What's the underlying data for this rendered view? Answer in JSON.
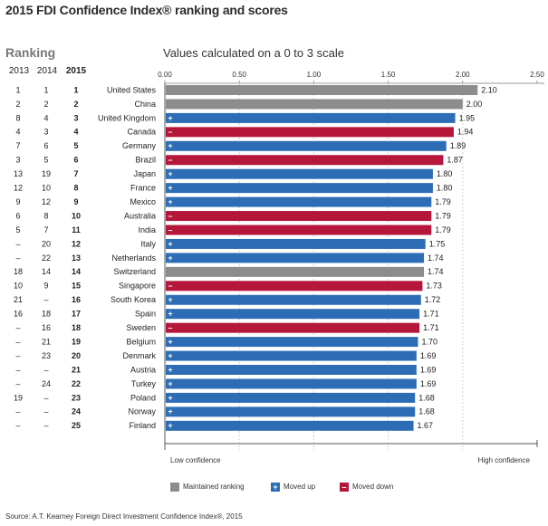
{
  "title": "2015 FDI Confidence Index® ranking and scores",
  "ranking_label": "Ranking",
  "scale_label": "Values calculated on a 0 to 3 scale",
  "years": [
    "2013",
    "2014",
    "2015"
  ],
  "legend": {
    "maintained": "Maintained ranking",
    "up": "Moved up",
    "down": "Moved down"
  },
  "source": "Source: A.T. Kearney Foreign Direct Investment Confidence Index®, 2015",
  "colors": {
    "maintained": "#8c8c8c",
    "up": "#2d6db5",
    "down": "#b5173b"
  },
  "chart_data": {
    "type": "bar",
    "orientation": "horizontal",
    "xlim": [
      0,
      2.5
    ],
    "x_ticks": [
      "0.00",
      "0.50",
      "1.00",
      "1.50",
      "2.00",
      "2.50"
    ],
    "x_tick_values": [
      0,
      0.5,
      1.0,
      1.5,
      2.0,
      2.5
    ],
    "low_label": "Low confidence",
    "high_label": "High confidence",
    "rows": [
      {
        "r2013": "1",
        "r2014": "1",
        "r2015": "1",
        "country": "United States",
        "value": 2.1,
        "label": "2.10",
        "status": "maintained"
      },
      {
        "r2013": "2",
        "r2014": "2",
        "r2015": "2",
        "country": "China",
        "value": 2.0,
        "label": "2.00",
        "status": "maintained"
      },
      {
        "r2013": "8",
        "r2014": "4",
        "r2015": "3",
        "country": "United Kingdom",
        "value": 1.95,
        "label": "1.95",
        "status": "up"
      },
      {
        "r2013": "4",
        "r2014": "3",
        "r2015": "4",
        "country": "Canada",
        "value": 1.94,
        "label": "1.94",
        "status": "down"
      },
      {
        "r2013": "7",
        "r2014": "6",
        "r2015": "5",
        "country": "Germany",
        "value": 1.89,
        "label": "1.89",
        "status": "up"
      },
      {
        "r2013": "3",
        "r2014": "5",
        "r2015": "6",
        "country": "Brazil",
        "value": 1.87,
        "label": "1.87",
        "status": "down"
      },
      {
        "r2013": "13",
        "r2014": "19",
        "r2015": "7",
        "country": "Japan",
        "value": 1.8,
        "label": "1.80",
        "status": "up"
      },
      {
        "r2013": "12",
        "r2014": "10",
        "r2015": "8",
        "country": "France",
        "value": 1.8,
        "label": "1.80",
        "status": "up"
      },
      {
        "r2013": "9",
        "r2014": "12",
        "r2015": "9",
        "country": "Mexico",
        "value": 1.79,
        "label": "1.79",
        "status": "up"
      },
      {
        "r2013": "6",
        "r2014": "8",
        "r2015": "10",
        "country": "Australia",
        "value": 1.79,
        "label": "1.79",
        "status": "down"
      },
      {
        "r2013": "5",
        "r2014": "7",
        "r2015": "11",
        "country": "India",
        "value": 1.79,
        "label": "1.79",
        "status": "down"
      },
      {
        "r2013": "–",
        "r2014": "20",
        "r2015": "12",
        "country": "Italy",
        "value": 1.75,
        "label": "1.75",
        "status": "up"
      },
      {
        "r2013": "–",
        "r2014": "22",
        "r2015": "13",
        "country": "Netherlands",
        "value": 1.74,
        "label": "1.74",
        "status": "up"
      },
      {
        "r2013": "18",
        "r2014": "14",
        "r2015": "14",
        "country": "Switzerland",
        "value": 1.74,
        "label": "1.74",
        "status": "maintained"
      },
      {
        "r2013": "10",
        "r2014": "9",
        "r2015": "15",
        "country": "Singapore",
        "value": 1.73,
        "label": "1.73",
        "status": "down"
      },
      {
        "r2013": "21",
        "r2014": "–",
        "r2015": "16",
        "country": "South Korea",
        "value": 1.72,
        "label": "1.72",
        "status": "up"
      },
      {
        "r2013": "16",
        "r2014": "18",
        "r2015": "17",
        "country": "Spain",
        "value": 1.71,
        "label": "1.71",
        "status": "up"
      },
      {
        "r2013": "–",
        "r2014": "16",
        "r2015": "18",
        "country": "Sweden",
        "value": 1.71,
        "label": "1.71",
        "status": "down"
      },
      {
        "r2013": "–",
        "r2014": "21",
        "r2015": "19",
        "country": "Belgium",
        "value": 1.7,
        "label": "1.70",
        "status": "up"
      },
      {
        "r2013": "–",
        "r2014": "23",
        "r2015": "20",
        "country": "Denmark",
        "value": 1.69,
        "label": "1.69",
        "status": "up"
      },
      {
        "r2013": "–",
        "r2014": "–",
        "r2015": "21",
        "country": "Austria",
        "value": 1.69,
        "label": "1.69",
        "status": "up"
      },
      {
        "r2013": "–",
        "r2014": "24",
        "r2015": "22",
        "country": "Turkey",
        "value": 1.69,
        "label": "1.69",
        "status": "up"
      },
      {
        "r2013": "19",
        "r2014": "–",
        "r2015": "23",
        "country": "Poland",
        "value": 1.68,
        "label": "1.68",
        "status": "up"
      },
      {
        "r2013": "–",
        "r2014": "–",
        "r2015": "24",
        "country": "Norway",
        "value": 1.68,
        "label": "1.68",
        "status": "up"
      },
      {
        "r2013": "–",
        "r2014": "–",
        "r2015": "25",
        "country": "Finland",
        "value": 1.67,
        "label": "1.67",
        "status": "up"
      }
    ]
  }
}
